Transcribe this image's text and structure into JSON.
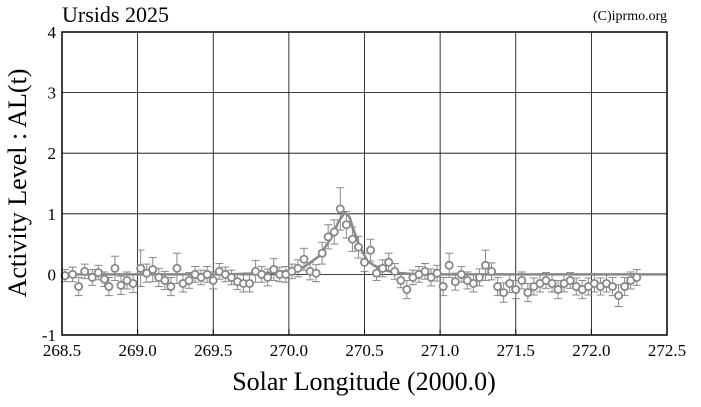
{
  "chart_data": {
    "type": "scatter",
    "title": "Ursids 2025",
    "credit": "(C)iprmo.org",
    "xlabel": "Solar Longitude (2000.0)",
    "ylabel": "Activity Level : AL(t)",
    "xlim": [
      268.5,
      272.5
    ],
    "ylim": [
      -1,
      4
    ],
    "xticks": [
      {
        "v": 268.5,
        "label": "268.5"
      },
      {
        "v": 269.0,
        "label": "269.0"
      },
      {
        "v": 269.5,
        "label": "269.5"
      },
      {
        "v": 270.0,
        "label": "270.0"
      },
      {
        "v": 270.5,
        "label": "270.5"
      },
      {
        "v": 271.0,
        "label": "271.0"
      },
      {
        "v": 271.5,
        "label": "271.5"
      },
      {
        "v": 272.0,
        "label": "272.0"
      },
      {
        "v": 272.5,
        "label": "272.5"
      }
    ],
    "yticks": [
      {
        "v": -1,
        "label": "-1"
      },
      {
        "v": 0,
        "label": "0"
      },
      {
        "v": 1,
        "label": "1"
      },
      {
        "v": 2,
        "label": "2"
      },
      {
        "v": 3,
        "label": "3"
      },
      {
        "v": 4,
        "label": "4"
      }
    ],
    "grid": true,
    "color": "#888888",
    "points": [
      {
        "x": 268.52,
        "y": -0.02,
        "err": 0.1
      },
      {
        "x": 268.57,
        "y": 0.0,
        "err": 0.12
      },
      {
        "x": 268.61,
        "y": -0.2,
        "err": 0.15
      },
      {
        "x": 268.65,
        "y": 0.05,
        "err": 0.12
      },
      {
        "x": 268.7,
        "y": -0.05,
        "err": 0.13
      },
      {
        "x": 268.74,
        "y": 0.03,
        "err": 0.12
      },
      {
        "x": 268.78,
        "y": -0.08,
        "err": 0.12
      },
      {
        "x": 268.81,
        "y": -0.2,
        "err": 0.15
      },
      {
        "x": 268.85,
        "y": 0.1,
        "err": 0.2
      },
      {
        "x": 268.89,
        "y": -0.18,
        "err": 0.15
      },
      {
        "x": 268.93,
        "y": -0.1,
        "err": 0.14
      },
      {
        "x": 268.97,
        "y": -0.15,
        "err": 0.15
      },
      {
        "x": 269.02,
        "y": 0.1,
        "err": 0.3
      },
      {
        "x": 269.06,
        "y": 0.02,
        "err": 0.15
      },
      {
        "x": 269.1,
        "y": 0.08,
        "err": 0.2
      },
      {
        "x": 269.14,
        "y": -0.05,
        "err": 0.15
      },
      {
        "x": 269.18,
        "y": -0.1,
        "err": 0.15
      },
      {
        "x": 269.22,
        "y": -0.2,
        "err": 0.15
      },
      {
        "x": 269.26,
        "y": 0.1,
        "err": 0.25
      },
      {
        "x": 269.3,
        "y": -0.15,
        "err": 0.14
      },
      {
        "x": 269.34,
        "y": -0.1,
        "err": 0.13
      },
      {
        "x": 269.38,
        "y": 0.0,
        "err": 0.13
      },
      {
        "x": 269.42,
        "y": -0.05,
        "err": 0.12
      },
      {
        "x": 269.46,
        "y": 0.0,
        "err": 0.13
      },
      {
        "x": 269.5,
        "y": -0.1,
        "err": 0.14
      },
      {
        "x": 269.54,
        "y": 0.05,
        "err": 0.13
      },
      {
        "x": 269.58,
        "y": 0.0,
        "err": 0.12
      },
      {
        "x": 269.62,
        "y": -0.05,
        "err": 0.12
      },
      {
        "x": 269.66,
        "y": -0.12,
        "err": 0.13
      },
      {
        "x": 269.7,
        "y": -0.15,
        "err": 0.14
      },
      {
        "x": 269.74,
        "y": -0.15,
        "err": 0.14
      },
      {
        "x": 269.78,
        "y": 0.05,
        "err": 0.18
      },
      {
        "x": 269.82,
        "y": 0.0,
        "err": 0.13
      },
      {
        "x": 269.86,
        "y": -0.05,
        "err": 0.14
      },
      {
        "x": 269.9,
        "y": 0.08,
        "err": 0.18
      },
      {
        "x": 269.94,
        "y": 0.0,
        "err": 0.12
      },
      {
        "x": 269.98,
        "y": 0.0,
        "err": 0.13
      },
      {
        "x": 270.02,
        "y": 0.05,
        "err": 0.12
      },
      {
        "x": 270.06,
        "y": 0.1,
        "err": 0.14
      },
      {
        "x": 270.1,
        "y": 0.25,
        "err": 0.18
      },
      {
        "x": 270.14,
        "y": 0.05,
        "err": 0.14
      },
      {
        "x": 270.18,
        "y": 0.02,
        "err": 0.14
      },
      {
        "x": 270.22,
        "y": 0.35,
        "err": 0.18
      },
      {
        "x": 270.26,
        "y": 0.62,
        "err": 0.2
      },
      {
        "x": 270.3,
        "y": 0.7,
        "err": 0.2
      },
      {
        "x": 270.34,
        "y": 1.08,
        "err": 0.35
      },
      {
        "x": 270.38,
        "y": 0.82,
        "err": 0.22
      },
      {
        "x": 270.42,
        "y": 0.58,
        "err": 0.2
      },
      {
        "x": 270.46,
        "y": 0.45,
        "err": 0.18
      },
      {
        "x": 270.5,
        "y": 0.2,
        "err": 0.15
      },
      {
        "x": 270.54,
        "y": 0.4,
        "err": 0.18
      },
      {
        "x": 270.58,
        "y": 0.02,
        "err": 0.12
      },
      {
        "x": 270.62,
        "y": 0.1,
        "err": 0.14
      },
      {
        "x": 270.66,
        "y": 0.2,
        "err": 0.15
      },
      {
        "x": 270.7,
        "y": 0.05,
        "err": 0.13
      },
      {
        "x": 270.74,
        "y": -0.1,
        "err": 0.12
      },
      {
        "x": 270.78,
        "y": -0.25,
        "err": 0.15
      },
      {
        "x": 270.82,
        "y": -0.05,
        "err": 0.12
      },
      {
        "x": 270.86,
        "y": 0.0,
        "err": 0.13
      },
      {
        "x": 270.9,
        "y": 0.05,
        "err": 0.13
      },
      {
        "x": 270.94,
        "y": -0.05,
        "err": 0.14
      },
      {
        "x": 270.98,
        "y": 0.02,
        "err": 0.13
      },
      {
        "x": 271.02,
        "y": -0.2,
        "err": 0.15
      },
      {
        "x": 271.06,
        "y": 0.15,
        "err": 0.2
      },
      {
        "x": 271.1,
        "y": -0.12,
        "err": 0.14
      },
      {
        "x": 271.14,
        "y": 0.0,
        "err": 0.13
      },
      {
        "x": 271.18,
        "y": -0.1,
        "err": 0.14
      },
      {
        "x": 271.22,
        "y": -0.15,
        "err": 0.14
      },
      {
        "x": 271.26,
        "y": -0.05,
        "err": 0.14
      },
      {
        "x": 271.3,
        "y": 0.15,
        "err": 0.25
      },
      {
        "x": 271.34,
        "y": 0.05,
        "err": 0.14
      },
      {
        "x": 271.38,
        "y": -0.2,
        "err": 0.15
      },
      {
        "x": 271.42,
        "y": -0.3,
        "err": 0.16
      },
      {
        "x": 271.46,
        "y": -0.15,
        "err": 0.15
      },
      {
        "x": 271.5,
        "y": -0.25,
        "err": 0.15
      },
      {
        "x": 271.54,
        "y": -0.1,
        "err": 0.14
      },
      {
        "x": 271.58,
        "y": -0.3,
        "err": 0.15
      },
      {
        "x": 271.62,
        "y": -0.2,
        "err": 0.14
      },
      {
        "x": 271.66,
        "y": -0.15,
        "err": 0.14
      },
      {
        "x": 271.7,
        "y": -0.1,
        "err": 0.13
      },
      {
        "x": 271.74,
        "y": -0.15,
        "err": 0.14
      },
      {
        "x": 271.78,
        "y": -0.25,
        "err": 0.15
      },
      {
        "x": 271.82,
        "y": -0.15,
        "err": 0.14
      },
      {
        "x": 271.86,
        "y": -0.1,
        "err": 0.13
      },
      {
        "x": 271.9,
        "y": -0.2,
        "err": 0.14
      },
      {
        "x": 271.94,
        "y": -0.25,
        "err": 0.15
      },
      {
        "x": 271.98,
        "y": -0.2,
        "err": 0.14
      },
      {
        "x": 272.02,
        "y": -0.15,
        "err": 0.14
      },
      {
        "x": 272.06,
        "y": -0.2,
        "err": 0.14
      },
      {
        "x": 272.1,
        "y": -0.15,
        "err": 0.14
      },
      {
        "x": 272.14,
        "y": -0.2,
        "err": 0.15
      },
      {
        "x": 272.18,
        "y": -0.35,
        "err": 0.18
      },
      {
        "x": 272.22,
        "y": -0.2,
        "err": 0.15
      },
      {
        "x": 272.26,
        "y": -0.1,
        "err": 0.14
      },
      {
        "x": 272.3,
        "y": -0.05,
        "err": 0.13
      }
    ],
    "fit_curve": [
      [
        268.5,
        0.0
      ],
      [
        269.6,
        0.0
      ],
      [
        269.9,
        0.03
      ],
      [
        270.0,
        0.06
      ],
      [
        270.1,
        0.12
      ],
      [
        270.2,
        0.3
      ],
      [
        270.28,
        0.6
      ],
      [
        270.33,
        0.88
      ],
      [
        270.37,
        1.02
      ],
      [
        270.4,
        0.95
      ],
      [
        270.43,
        0.72
      ],
      [
        270.47,
        0.45
      ],
      [
        270.52,
        0.22
      ],
      [
        270.6,
        0.09
      ],
      [
        270.7,
        0.03
      ],
      [
        270.85,
        0.0
      ],
      [
        272.5,
        0.0
      ]
    ]
  }
}
